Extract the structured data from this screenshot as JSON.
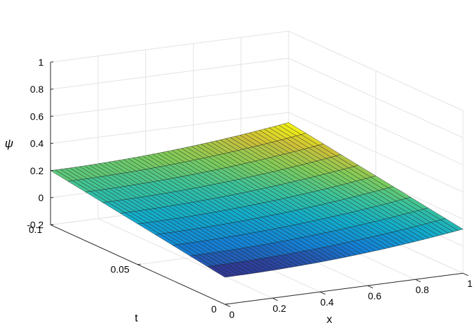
{
  "chart_data": {
    "type": "surface",
    "title": "",
    "xlabel": "x",
    "ylabel": "t",
    "zlabel": "ψ",
    "xlim": [
      0,
      1
    ],
    "ylim": [
      0,
      0.1
    ],
    "zlim": [
      -0.2,
      1
    ],
    "x_ticks": [
      0,
      0.2,
      0.4,
      0.6,
      0.8,
      1
    ],
    "x_tick_labels": [
      "0",
      "0.2",
      "0.4",
      "0.6",
      "0.8",
      "1"
    ],
    "y_ticks": [
      0,
      0.05,
      0.1
    ],
    "y_tick_labels": [
      "0",
      "0.05",
      "0.1"
    ],
    "z_ticks": [
      -0.2,
      0,
      0.2,
      0.4,
      0.6,
      0.8,
      1
    ],
    "z_tick_labels": [
      "-0.2",
      "0",
      "0.2",
      "0.4",
      "0.6",
      "0.8",
      "1"
    ],
    "grid": true,
    "colormap": "parula",
    "surface": {
      "x_samples": [
        0,
        0.0204,
        0.0408,
        0.0612,
        0.0816,
        0.102,
        0.1224,
        0.1429,
        0.1633,
        0.1837,
        0.2041,
        0.2245,
        0.2449,
        0.2653,
        0.2857,
        0.3061,
        0.3265,
        0.3469,
        0.3673,
        0.3878,
        0.4082,
        0.4286,
        0.449,
        0.4694,
        0.4898,
        0.5102,
        0.5306,
        0.551,
        0.5714,
        0.5918,
        0.6122,
        0.6327,
        0.6531,
        0.6735,
        0.6939,
        0.7143,
        0.7347,
        0.7551,
        0.7755,
        0.7959,
        0.8163,
        0.8367,
        0.8571,
        0.8776,
        0.898,
        0.9184,
        0.9388,
        0.9592,
        0.9796,
        1
      ],
      "t_samples": [
        0,
        0.01,
        0.02,
        0.03,
        0.04,
        0.05,
        0.06,
        0.07,
        0.08,
        0.09,
        0.1
      ],
      "psi": [
        [
          0,
          0,
          0.0002,
          0.0005,
          0.0008,
          0.0013,
          0.0019,
          0.0025,
          0.0033,
          0.0042,
          0.0052,
          0.0063,
          0.0075,
          0.0088,
          0.0102,
          0.0117,
          0.0133,
          0.015,
          0.0168,
          0.0188,
          0.0208,
          0.0229,
          0.0252,
          0.0275,
          0.03,
          0.0325,
          0.0352,
          0.0379,
          0.0408,
          0.0438,
          0.0469,
          0.05,
          0.0533,
          0.0567,
          0.0602,
          0.0638,
          0.0675,
          0.0713,
          0.0752,
          0.0792,
          0.0833,
          0.0875,
          0.0918,
          0.0963,
          0.1008,
          0.1054,
          0.1102,
          0.115,
          0.12,
          0.125
        ],
        [
          0.02,
          0.02,
          0.0202,
          0.0205,
          0.0208,
          0.0213,
          0.0219,
          0.0225,
          0.0233,
          0.0242,
          0.0252,
          0.0263,
          0.0275,
          0.0288,
          0.0302,
          0.0317,
          0.0333,
          0.035,
          0.0368,
          0.0388,
          0.0408,
          0.0429,
          0.0452,
          0.0475,
          0.05,
          0.0525,
          0.0552,
          0.0579,
          0.0608,
          0.0638,
          0.0669,
          0.07,
          0.0733,
          0.0767,
          0.0802,
          0.0838,
          0.0875,
          0.0913,
          0.0952,
          0.0992,
          0.1033,
          0.1075,
          0.1118,
          0.1163,
          0.1208,
          0.1254,
          0.1302,
          0.135,
          0.14,
          0.145
        ],
        [
          0.04,
          0.04,
          0.0402,
          0.0405,
          0.0408,
          0.0413,
          0.0419,
          0.0425,
          0.0433,
          0.0442,
          0.0452,
          0.0463,
          0.0475,
          0.0488,
          0.0502,
          0.0517,
          0.0533,
          0.055,
          0.0568,
          0.0588,
          0.0608,
          0.0629,
          0.0652,
          0.0675,
          0.07,
          0.0725,
          0.0752,
          0.0779,
          0.0808,
          0.0838,
          0.0869,
          0.09,
          0.0933,
          0.0967,
          0.1002,
          0.1038,
          0.1075,
          0.1113,
          0.1152,
          0.1192,
          0.1233,
          0.1275,
          0.1318,
          0.1363,
          0.1408,
          0.1454,
          0.1502,
          0.155,
          0.16,
          0.165
        ],
        [
          0.06,
          0.06,
          0.0602,
          0.0605,
          0.0608,
          0.0613,
          0.0619,
          0.0625,
          0.0633,
          0.0642,
          0.0652,
          0.0663,
          0.0675,
          0.0688,
          0.0702,
          0.0717,
          0.0733,
          0.075,
          0.0768,
          0.0788,
          0.0808,
          0.0829,
          0.0852,
          0.0875,
          0.09,
          0.0925,
          0.0952,
          0.0979,
          0.1008,
          0.1038,
          0.1069,
          0.11,
          0.1133,
          0.1167,
          0.1202,
          0.1238,
          0.1275,
          0.1313,
          0.1352,
          0.1392,
          0.1433,
          0.1475,
          0.1518,
          0.1563,
          0.1608,
          0.1654,
          0.1702,
          0.175,
          0.18,
          0.185
        ],
        [
          0.08,
          0.08,
          0.0802,
          0.0805,
          0.0808,
          0.0813,
          0.0819,
          0.0825,
          0.0833,
          0.0842,
          0.0852,
          0.0863,
          0.0875,
          0.0888,
          0.0902,
          0.0917,
          0.0933,
          0.095,
          0.0968,
          0.0988,
          0.1008,
          0.1029,
          0.1052,
          0.1075,
          0.11,
          0.1125,
          0.1152,
          0.1179,
          0.1208,
          0.1238,
          0.1269,
          0.13,
          0.1333,
          0.1367,
          0.1402,
          0.1438,
          0.1475,
          0.1513,
          0.1552,
          0.1592,
          0.1633,
          0.1675,
          0.1718,
          0.1763,
          0.1808,
          0.1854,
          0.1902,
          0.195,
          0.2,
          0.205
        ],
        [
          0.1,
          0.1,
          0.1002,
          0.1005,
          0.1008,
          0.1013,
          0.1019,
          0.1025,
          0.1033,
          0.1042,
          0.1052,
          0.1063,
          0.1075,
          0.1088,
          0.1102,
          0.1117,
          0.1133,
          0.115,
          0.1168,
          0.1188,
          0.1208,
          0.1229,
          0.1252,
          0.1275,
          0.13,
          0.1325,
          0.1352,
          0.1379,
          0.1408,
          0.1438,
          0.1469,
          0.15,
          0.1533,
          0.1567,
          0.1602,
          0.1638,
          0.1675,
          0.1713,
          0.1752,
          0.1792,
          0.1833,
          0.1875,
          0.1918,
          0.1963,
          0.2008,
          0.2054,
          0.2102,
          0.215,
          0.22,
          0.225
        ],
        [
          0.12,
          0.12,
          0.1202,
          0.1205,
          0.1208,
          0.1213,
          0.1219,
          0.1225,
          0.1233,
          0.1242,
          0.1252,
          0.1263,
          0.1275,
          0.1288,
          0.1302,
          0.1317,
          0.1333,
          0.135,
          0.1368,
          0.1388,
          0.1408,
          0.1429,
          0.1452,
          0.1475,
          0.15,
          0.1525,
          0.1552,
          0.1579,
          0.1608,
          0.1638,
          0.1669,
          0.17,
          0.1733,
          0.1767,
          0.1802,
          0.1838,
          0.1875,
          0.1913,
          0.1952,
          0.1992,
          0.2033,
          0.2075,
          0.2118,
          0.2163,
          0.2208,
          0.2254,
          0.2302,
          0.235,
          0.24,
          0.245
        ],
        [
          0.14,
          0.14,
          0.1402,
          0.1405,
          0.1408,
          0.1413,
          0.1419,
          0.1425,
          0.1433,
          0.1442,
          0.1452,
          0.1463,
          0.1475,
          0.1488,
          0.1502,
          0.1517,
          0.1533,
          0.155,
          0.1568,
          0.1588,
          0.1608,
          0.1629,
          0.1652,
          0.1675,
          0.17,
          0.1725,
          0.1752,
          0.1779,
          0.1808,
          0.1838,
          0.1869,
          0.19,
          0.1933,
          0.1967,
          0.2002,
          0.2038,
          0.2075,
          0.2113,
          0.2152,
          0.2192,
          0.2233,
          0.2275,
          0.2318,
          0.2363,
          0.2408,
          0.2454,
          0.2502,
          0.255,
          0.26,
          0.265
        ],
        [
          0.16,
          0.16,
          0.1602,
          0.1605,
          0.1608,
          0.1613,
          0.1619,
          0.1625,
          0.1633,
          0.1642,
          0.1652,
          0.1663,
          0.1675,
          0.1688,
          0.1702,
          0.1717,
          0.1733,
          0.175,
          0.1768,
          0.1788,
          0.1808,
          0.1829,
          0.1852,
          0.1875,
          0.19,
          0.1925,
          0.1952,
          0.1979,
          0.2008,
          0.2038,
          0.2069,
          0.21,
          0.2133,
          0.2167,
          0.2202,
          0.2238,
          0.2275,
          0.2313,
          0.2352,
          0.2392,
          0.2433,
          0.2475,
          0.2518,
          0.2563,
          0.2608,
          0.2654,
          0.2702,
          0.275,
          0.28,
          0.285
        ],
        [
          0.18,
          0.18,
          0.1802,
          0.1805,
          0.1808,
          0.1813,
          0.1819,
          0.1825,
          0.1833,
          0.1842,
          0.1852,
          0.1863,
          0.1875,
          0.1888,
          0.1902,
          0.1917,
          0.1933,
          0.195,
          0.1968,
          0.1988,
          0.2008,
          0.2029,
          0.2052,
          0.2075,
          0.21,
          0.2125,
          0.2152,
          0.2179,
          0.2208,
          0.2238,
          0.2269,
          0.23,
          0.2333,
          0.2367,
          0.2402,
          0.2438,
          0.2475,
          0.2513,
          0.2552,
          0.2592,
          0.2633,
          0.2675,
          0.2718,
          0.2763,
          0.2808,
          0.2854,
          0.2902,
          0.295,
          0.3,
          0.305
        ],
        [
          0.2,
          0.2,
          0.2002,
          0.2005,
          0.2008,
          0.2013,
          0.2019,
          0.2025,
          0.2033,
          0.2042,
          0.2052,
          0.2063,
          0.2075,
          0.2088,
          0.2102,
          0.2117,
          0.2133,
          0.215,
          0.2168,
          0.2188,
          0.2208,
          0.2229,
          0.2252,
          0.2275,
          0.23,
          0.2325,
          0.2352,
          0.2379,
          0.2408,
          0.2438,
          0.2469,
          0.25,
          0.2533,
          0.2567,
          0.2602,
          0.2638,
          0.2675,
          0.2713,
          0.2752,
          0.2792,
          0.2833,
          0.2875,
          0.2918,
          0.2963,
          0.3008,
          0.3054,
          0.3102,
          0.315,
          0.32,
          0.325
        ]
      ]
    }
  }
}
